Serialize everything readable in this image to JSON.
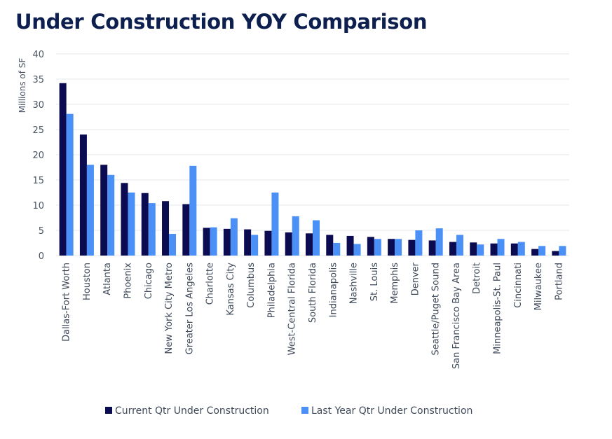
{
  "title": "Under Construction YOY Comparison",
  "colors": {
    "current": "#0b0b52",
    "last": "#4a90f7",
    "grid": "#e5e7eb",
    "title": "#0d1f4f"
  },
  "chart_data": {
    "type": "bar",
    "title": "Under Construction YOY Comparison",
    "ylabel": "Millions of SF",
    "xlabel": "",
    "ylim": [
      0,
      40
    ],
    "yticks": [
      0,
      5,
      10,
      15,
      20,
      25,
      30,
      35,
      40
    ],
    "grid": true,
    "legend": "bottom",
    "categories": [
      "Dallas-Fort Worth",
      "Houston",
      "Atlanta",
      "Phoenix",
      "Chicago",
      "New York City Metro",
      "Greater Los Angeles",
      "Charlotte",
      "Kansas City",
      "Columbus",
      "Philadelphia",
      "West-Central Florida",
      "South Florida",
      "Indianapolis",
      "Nashville",
      "St. Louis",
      "Memphis",
      "Denver",
      "Seattle/Puget Sound",
      "San Francisco Bay Area",
      "Detroit",
      "Minneapolis-St. Paul",
      "Cincinnati",
      "Milwaukee",
      "Portland"
    ],
    "series": [
      {
        "name": "Current Qtr Under Construction",
        "values": [
          34.2,
          24.0,
          18.0,
          14.4,
          12.4,
          10.8,
          10.2,
          5.5,
          5.3,
          5.2,
          4.9,
          4.6,
          4.4,
          4.1,
          3.9,
          3.7,
          3.3,
          3.1,
          3.0,
          2.7,
          2.6,
          2.4,
          2.4,
          1.3,
          0.9
        ]
      },
      {
        "name": "Last Year Qtr Under Construction",
        "values": [
          28.1,
          18.0,
          16.0,
          12.5,
          10.4,
          4.3,
          17.8,
          5.6,
          7.4,
          4.1,
          12.5,
          7.8,
          7.0,
          2.5,
          2.3,
          3.3,
          3.3,
          5.0,
          5.4,
          4.1,
          2.2,
          3.3,
          2.7,
          1.9,
          1.9
        ]
      }
    ]
  }
}
